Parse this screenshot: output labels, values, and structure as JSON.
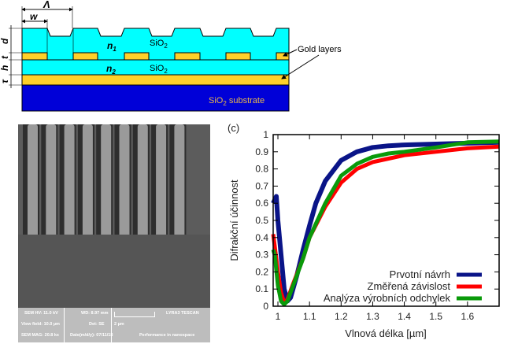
{
  "schematic": {
    "labels": {
      "lambda": "Λ",
      "w": "w",
      "d": "d",
      "t": "t",
      "h": "h",
      "tau": "τ",
      "n1": "n",
      "n1_sub": "1",
      "n2": "n",
      "n2_sub": "2"
    },
    "layer_top": "SiO",
    "layer_mid": "SiO",
    "substrate": "SiO",
    "substrate_suffix": " substrate",
    "sub2": "2",
    "gold_layers": "Gold layers",
    "colors": {
      "sio2": "#00ffff",
      "gold": "#ffd02a",
      "substrate": "#0000d8",
      "substrate_text": "#e8b84a"
    }
  },
  "sem": {
    "info": {
      "hv": "SEM HV: 11.0 kV",
      "wd": "WD: 8.97 mm",
      "brand": "LYRA3 TESCAN",
      "view": "View field: 10.0 µm",
      "det": "Det: SE",
      "scale": "2 µm",
      "mag": "SEM MAG: 20.8 kx",
      "date": "Date(m/d/y): 07/11/18",
      "slogan": "Performance in nanospace"
    }
  },
  "chart_data": {
    "type": "line",
    "panel_label": "(c)",
    "title": "",
    "xlabel": "Vlnová délka [µm]",
    "ylabel": "Difrakční účinnost",
    "xlim": [
      0.985,
      1.7
    ],
    "ylim": [
      0,
      1
    ],
    "xticks": [
      "1",
      "1.1",
      "1.2",
      "1.3",
      "1.4",
      "1.5",
      "1.6"
    ],
    "yticks": [
      "0",
      "0.1",
      "0.2",
      "0.3",
      "0.4",
      "0.5",
      "0.6",
      "0.7",
      "0.8",
      "0.9",
      "1"
    ],
    "legend_position": "bottom-right",
    "series": [
      {
        "name": "Prvotní návrh",
        "color": "#0a1488",
        "x": [
          0.985,
          0.995,
          1.0,
          1.01,
          1.02,
          1.03,
          1.04,
          1.06,
          1.08,
          1.1,
          1.12,
          1.15,
          1.2,
          1.25,
          1.3,
          1.35,
          1.4,
          1.5,
          1.6,
          1.7
        ],
        "y": [
          0.6,
          0.64,
          0.5,
          0.3,
          0.1,
          0.03,
          0.05,
          0.18,
          0.33,
          0.47,
          0.6,
          0.73,
          0.85,
          0.9,
          0.925,
          0.935,
          0.94,
          0.945,
          0.95,
          0.955
        ]
      },
      {
        "name": "Změřená závislost",
        "color": "#ff0000",
        "x": [
          0.985,
          0.99,
          1.0,
          1.01,
          1.02,
          1.03,
          1.05,
          1.08,
          1.1,
          1.15,
          1.2,
          1.25,
          1.3,
          1.35,
          1.4,
          1.5,
          1.6,
          1.7
        ],
        "y": [
          0.42,
          0.35,
          0.2,
          0.08,
          0.02,
          0.04,
          0.14,
          0.28,
          0.4,
          0.58,
          0.72,
          0.8,
          0.84,
          0.86,
          0.88,
          0.9,
          0.92,
          0.93
        ]
      },
      {
        "name": "Analýza výrobních odchylek",
        "color": "#0a9a0a",
        "x": [
          0.985,
          0.99,
          1.0,
          1.01,
          1.02,
          1.03,
          1.05,
          1.08,
          1.1,
          1.15,
          1.2,
          1.25,
          1.3,
          1.35,
          1.4,
          1.5,
          1.6,
          1.7
        ],
        "y": [
          0.33,
          0.3,
          0.12,
          0.03,
          0.01,
          0.03,
          0.13,
          0.28,
          0.4,
          0.6,
          0.76,
          0.83,
          0.87,
          0.89,
          0.9,
          0.925,
          0.955,
          0.96
        ]
      }
    ]
  }
}
